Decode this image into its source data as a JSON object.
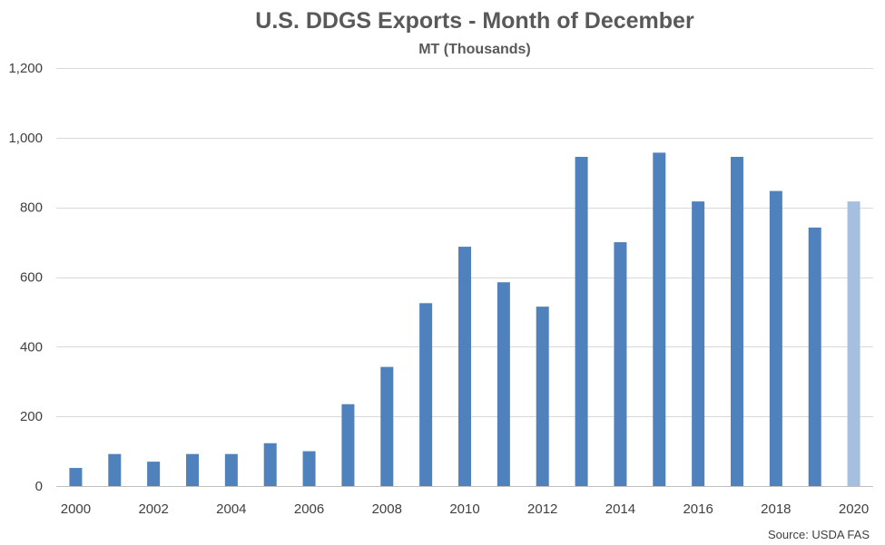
{
  "chart_data": {
    "type": "bar",
    "title": "U.S. DDGS Exports - Month of December",
    "subtitle": "MT (Thousands)",
    "source": "Source: USDA FAS",
    "x": [
      2000,
      2001,
      2002,
      2003,
      2004,
      2005,
      2006,
      2007,
      2008,
      2009,
      2010,
      2011,
      2012,
      2013,
      2014,
      2015,
      2016,
      2017,
      2018,
      2019,
      2020
    ],
    "values": [
      52,
      92,
      70,
      92,
      92,
      123,
      100,
      235,
      342,
      525,
      687,
      585,
      515,
      945,
      700,
      957,
      817,
      945,
      847,
      742,
      817
    ],
    "x_tick_labels": [
      "2000",
      "2002",
      "2004",
      "2006",
      "2008",
      "2010",
      "2012",
      "2014",
      "2016",
      "2018",
      "2020"
    ],
    "y_ticks": [
      0,
      200,
      400,
      600,
      800,
      1000,
      1200
    ],
    "y_tick_labels": [
      "0",
      "200",
      "400",
      "600",
      "800",
      "1,000",
      "1,200"
    ],
    "ylim": [
      0,
      1200
    ],
    "grid": true,
    "legend": "none",
    "colors": {
      "bar": "#4f81bd",
      "highlight": "#a7bfde",
      "highlight_index": 20
    }
  }
}
